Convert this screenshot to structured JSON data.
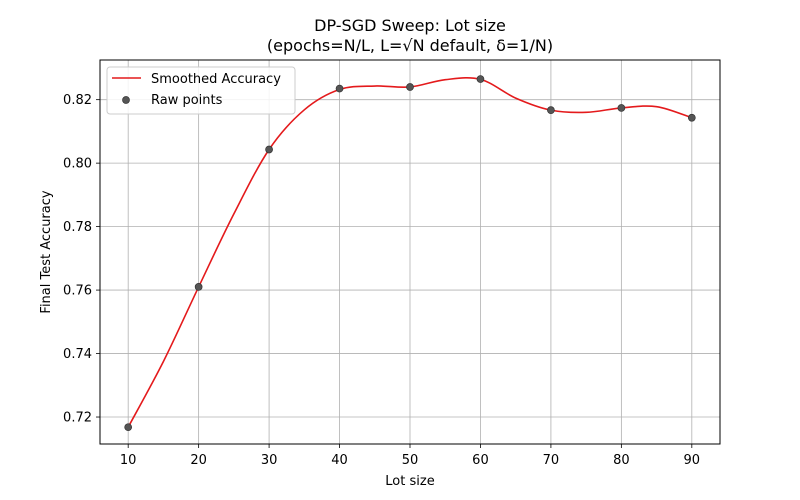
{
  "chart_data": {
    "type": "line",
    "title": "DP-SGD Sweep: Lot size",
    "subtitle": "(epochs=N/L, L=√N default, δ=1/N)",
    "xlabel": "Lot size",
    "ylabel": "Final Test Accuracy",
    "xlim": [
      6,
      94
    ],
    "ylim": [
      0.7115,
      0.8325
    ],
    "xticks": [
      10,
      20,
      30,
      40,
      50,
      60,
      70,
      80,
      90
    ],
    "yticks": [
      0.72,
      0.74,
      0.76,
      0.78,
      0.8,
      0.82
    ],
    "ytick_format": 2,
    "grid": true,
    "legend_position": "top-left",
    "series": [
      {
        "name": "Smoothed Accuracy",
        "kind": "line",
        "color": "#e41a1c",
        "x": [
          10,
          15,
          20,
          25,
          30,
          35,
          40,
          45,
          50,
          55,
          60,
          65,
          70,
          75,
          80,
          85,
          90
        ],
        "y": [
          0.7168,
          0.7375,
          0.761,
          0.784,
          0.8043,
          0.8168,
          0.8232,
          0.8243,
          0.824,
          0.8263,
          0.8264,
          0.8205,
          0.8167,
          0.816,
          0.8174,
          0.8178,
          0.8143
        ]
      },
      {
        "name": "Raw points",
        "kind": "scatter",
        "color": "#555555",
        "x": [
          10,
          20,
          30,
          40,
          50,
          60,
          70,
          80,
          90
        ],
        "y": [
          0.7168,
          0.761,
          0.8043,
          0.8235,
          0.824,
          0.8265,
          0.8167,
          0.8174,
          0.8143
        ]
      }
    ]
  }
}
